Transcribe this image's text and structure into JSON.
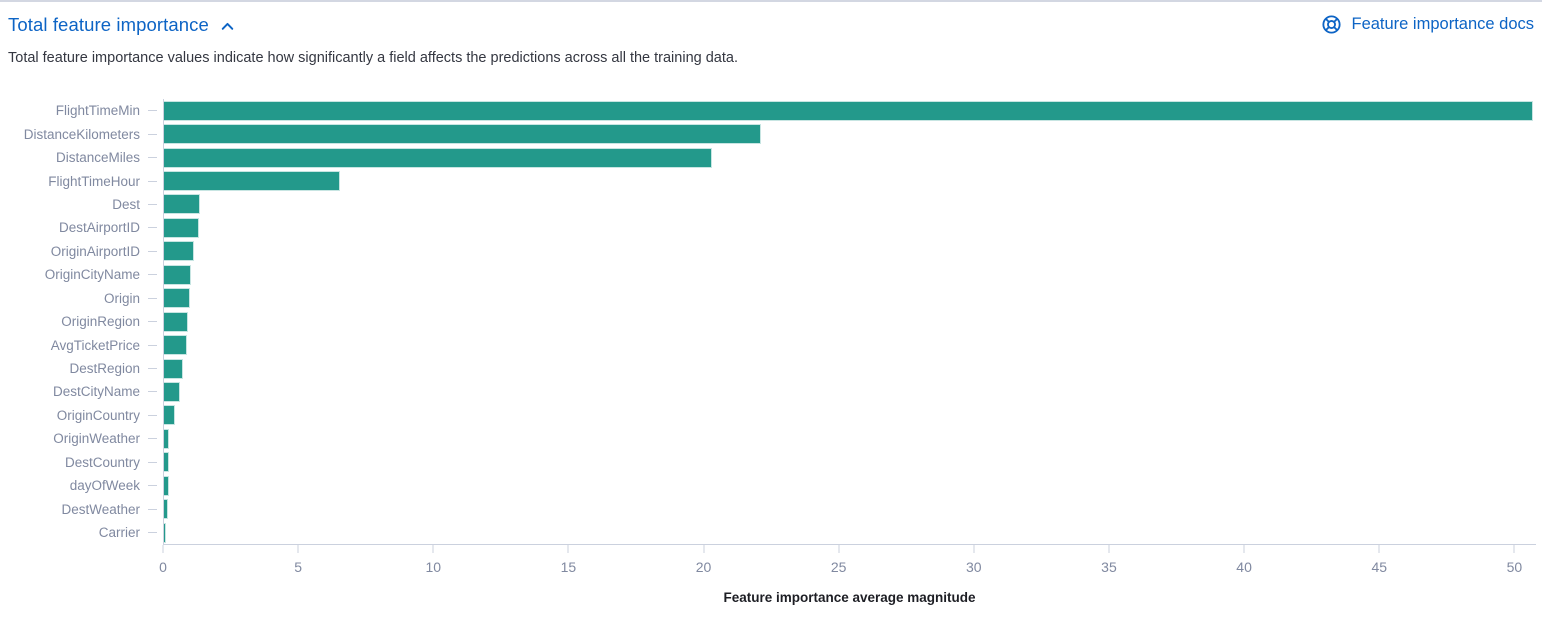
{
  "header": {
    "title": "Total feature importance",
    "docs_link_label": "Feature importance docs"
  },
  "icons": {
    "collapse": "chevron-up-icon",
    "docs": "lifebuoy-icon"
  },
  "description": "Total feature importance values indicate how significantly a field affects the predictions across all the training data.",
  "colors": {
    "link_blue": "#0d64c5",
    "bar_teal": "#23998b",
    "axis_line": "#cbd1de",
    "tick_label": "#8089a0",
    "body_text": "#343741",
    "axis_title_text": "#1d1e24",
    "top_border": "#d3d7e2"
  },
  "chart_data": {
    "type": "bar",
    "orientation": "horizontal",
    "title": "",
    "xlabel": "Feature importance average magnitude",
    "ylabel": "",
    "grid": false,
    "legend": "none",
    "xlim": [
      0,
      50.8
    ],
    "xticks": [
      0,
      5,
      10,
      15,
      20,
      25,
      30,
      35,
      40,
      45,
      50
    ],
    "categories": [
      "FlightTimeMin",
      "DistanceKilometers",
      "DistanceMiles",
      "FlightTimeHour",
      "Dest",
      "DestAirportID",
      "OriginAirportID",
      "OriginCityName",
      "Origin",
      "OriginRegion",
      "AvgTicketPrice",
      "DestRegion",
      "DestCityName",
      "OriginCountry",
      "OriginWeather",
      "DestCountry",
      "dayOfWeek",
      "DestWeather",
      "Carrier"
    ],
    "values": [
      50.7,
      22.1,
      20.3,
      6.5,
      1.35,
      1.3,
      1.1,
      1.0,
      0.95,
      0.9,
      0.85,
      0.72,
      0.6,
      0.42,
      0.2,
      0.2,
      0.17,
      0.13,
      0.06
    ],
    "bar_color": "#23998b"
  }
}
